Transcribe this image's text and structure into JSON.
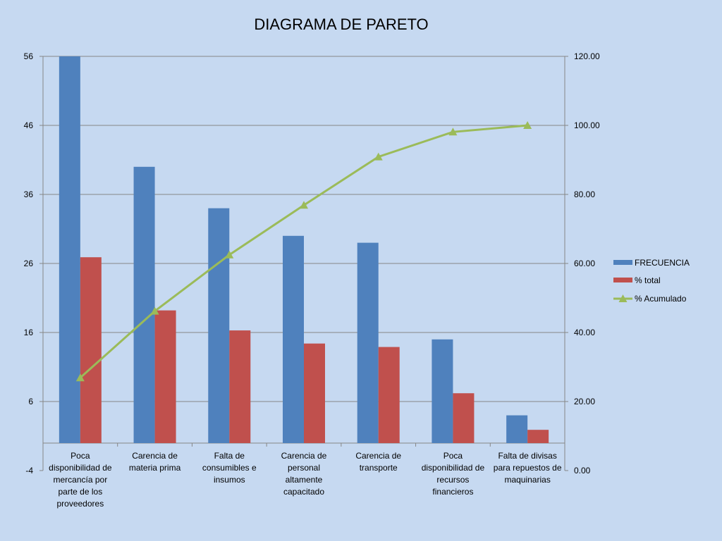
{
  "chart_data": {
    "type": "bar",
    "title": "DIAGRAMA DE PARETO",
    "categories": [
      "Poca disponibilidad de mercancía por parte de los proveedores",
      "Carencia de materia prima",
      "Falta de consumibles e insumos",
      "Carencia de personal altamente capacitado",
      "Carencia de transporte",
      "Poca disponibilidad de recursos financieros",
      "Falta de divisas para repuestos de maquinarias"
    ],
    "category_lines": [
      [
        "Poca",
        "disponibilidad de",
        "mercancía por",
        "parte de los",
        "proveedores"
      ],
      [
        "Carencia de",
        "materia prima"
      ],
      [
        "Falta de",
        "consumibles e",
        "insumos"
      ],
      [
        "Carencia de",
        "personal",
        "altamente",
        "capacitado"
      ],
      [
        "Carencia de",
        "transporte"
      ],
      [
        "Poca",
        "disponibilidad de",
        "recursos",
        "financieros"
      ],
      [
        "Falta de divisas",
        "para repuestos de",
        "maquinarias"
      ]
    ],
    "series": [
      {
        "name": "FRECUENCIA",
        "axis": "left",
        "kind": "bar",
        "color": "#4f81bd",
        "values": [
          56,
          40,
          34,
          30,
          29,
          15,
          4
        ]
      },
      {
        "name": "% total",
        "axis": "left",
        "kind": "bar",
        "color": "#c0504d",
        "values": [
          26.9,
          19.2,
          16.3,
          14.4,
          13.9,
          7.2,
          1.9
        ]
      },
      {
        "name": "% Acumulado",
        "axis": "right",
        "kind": "line",
        "color": "#9bbb59",
        "marker": "triangle",
        "values": [
          26.9,
          46.2,
          62.5,
          76.9,
          90.9,
          98.1,
          100.0
        ]
      }
    ],
    "y_left": {
      "min": -4,
      "max": 56,
      "ticks": [
        "56",
        "46",
        "36",
        "26",
        "16",
        "6",
        "-4"
      ],
      "tick_values": [
        56,
        46,
        36,
        26,
        16,
        6,
        -4
      ]
    },
    "y_right": {
      "min": 0,
      "max": 120,
      "ticks": [
        "120.00",
        "100.00",
        "80.00",
        "60.00",
        "40.00",
        "20.00",
        "0.00"
      ],
      "tick_values": [
        120,
        100,
        80,
        60,
        40,
        20,
        0
      ]
    },
    "grid": true,
    "legend": "right"
  }
}
